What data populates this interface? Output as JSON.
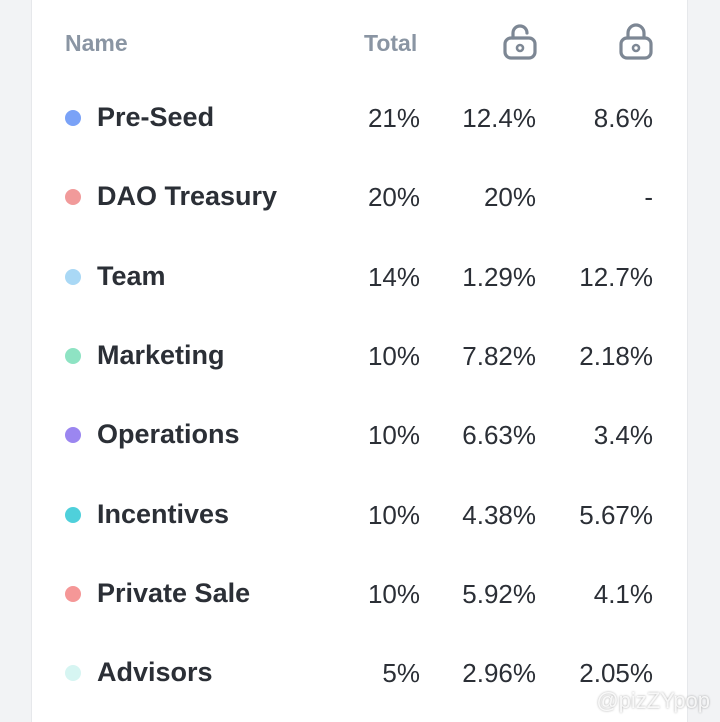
{
  "header": {
    "name": "Name",
    "total": "Total",
    "unlocked_icon": "unlocked-lock-icon",
    "locked_icon": "locked-lock-icon"
  },
  "rows": [
    {
      "name": "Pre-Seed",
      "color": "#7aa2f7",
      "total": "21%",
      "unlocked": "12.4%",
      "locked": "8.6%"
    },
    {
      "name": "DAO Treasury",
      "color": "#f19a9a",
      "total": "20%",
      "unlocked": "20%",
      "locked": "-"
    },
    {
      "name": "Team",
      "color": "#a9d8f5",
      "total": "14%",
      "unlocked": "1.29%",
      "locked": "12.7%"
    },
    {
      "name": "Marketing",
      "color": "#8ee3c3",
      "total": "10%",
      "unlocked": "7.82%",
      "locked": "2.18%"
    },
    {
      "name": "Operations",
      "color": "#9b86f0",
      "total": "10%",
      "unlocked": "6.63%",
      "locked": "3.4%"
    },
    {
      "name": "Incentives",
      "color": "#4fd0db",
      "total": "10%",
      "unlocked": "4.38%",
      "locked": "5.67%"
    },
    {
      "name": "Private Sale",
      "color": "#f59797",
      "total": "10%",
      "unlocked": "5.92%",
      "locked": "4.1%"
    },
    {
      "name": "Advisors",
      "color": "#d6f5f2",
      "total": "5%",
      "unlocked": "2.96%",
      "locked": "2.05%"
    }
  ],
  "watermark": "@pizZYpop"
}
